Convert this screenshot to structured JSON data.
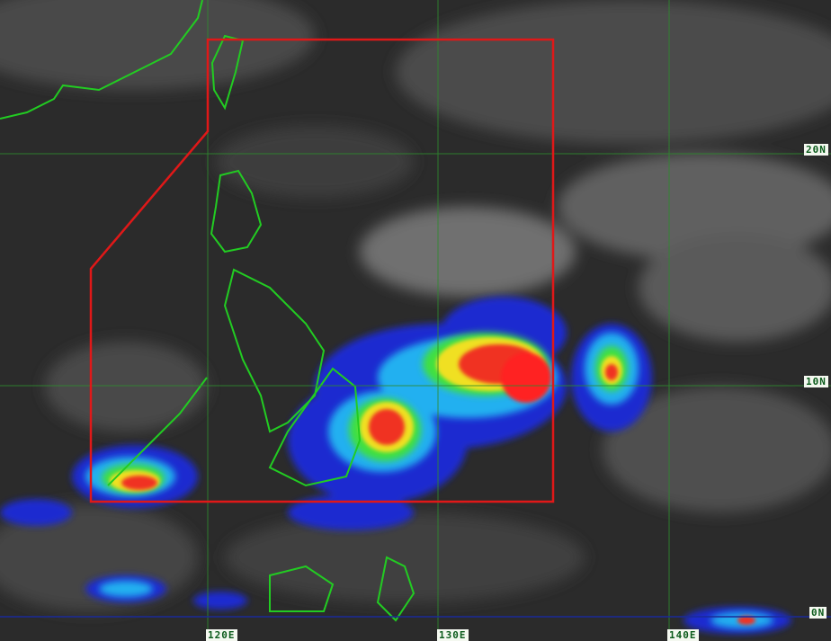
{
  "map": {
    "latitude_labels": [
      "20N",
      "10N",
      "0N"
    ],
    "longitude_labels": [
      "120E",
      "130E",
      "140E"
    ],
    "colors": {
      "background": "#2b2b2b",
      "gridline": "#2e8b2e",
      "equator": "#1a2a9a",
      "coastline": "#22cc22",
      "boundary": "#e01818",
      "label_bg": "#f4f8f0",
      "label_text": "#0a5a1a"
    },
    "enhancement_palette": [
      "#1010c0",
      "#2090ff",
      "#20e0e0",
      "#40e040",
      "#f0f020",
      "#ff8020",
      "#ff2020"
    ]
  }
}
